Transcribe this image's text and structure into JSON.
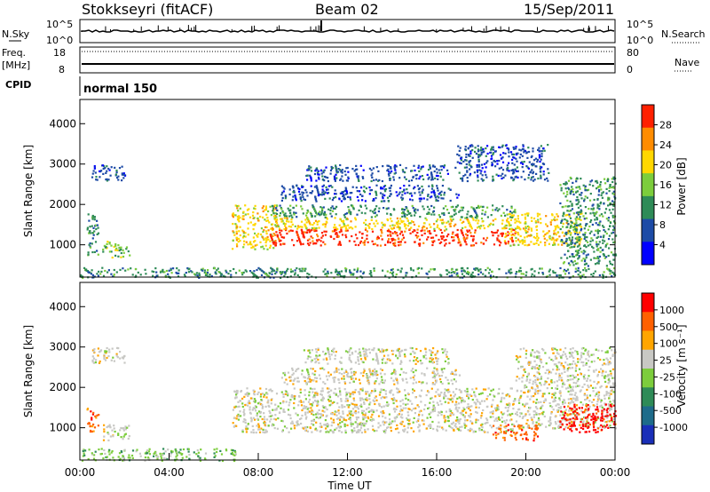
{
  "header": {
    "station": "Stokkseyri (fitACF)",
    "beam": "Beam 02",
    "date": "15/Sep/2011"
  },
  "summary_panels": {
    "nsky_label": "N.Sky",
    "nsky_ticks": [
      "10^5",
      "10^0"
    ],
    "nsearch_label": "N.Search",
    "nsearch_ticks": [
      "10^5",
      "10^0"
    ],
    "freq_label": "Freq.",
    "freq_unit": "[MHz]",
    "freq_ticks": [
      "18",
      "8"
    ],
    "nave_label": "Nave",
    "nave_ticks": [
      "80",
      "0"
    ],
    "cpid_label": "CPID",
    "cpid_value": "normal 150"
  },
  "chart_data": [
    {
      "type": "heatmap",
      "panel": "power",
      "ylabel": "Slant Range [km]",
      "xlabel": "",
      "ylim": [
        200,
        4600
      ],
      "yticks": [
        "1000",
        "2000",
        "3000",
        "4000"
      ],
      "colorbar_label": "Power [dB]",
      "colorbar_ticks": [
        "4",
        "8",
        "12",
        "16",
        "20",
        "24",
        "28"
      ],
      "colors": [
        "#0000ff",
        "#1d4ba6",
        "#2e8b57",
        "#7ccd3c",
        "#ffd700",
        "#ff8c00",
        "#ff2000"
      ],
      "bands": [
        {
          "t_start": 0.3,
          "t_end": 0.8,
          "range_lo": 700,
          "range_hi": 1800,
          "level": 2
        },
        {
          "t_start": 0.5,
          "t_end": 2.0,
          "range_lo": 2600,
          "range_hi": 3000,
          "level": 1
        },
        {
          "t_start": 1.0,
          "t_end": 2.2,
          "range_lo": 700,
          "range_hi": 1100,
          "level": 3
        },
        {
          "t_start": 6.8,
          "t_end": 8.8,
          "range_lo": 900,
          "range_hi": 2000,
          "level": 4
        },
        {
          "t_start": 8.5,
          "t_end": 19.5,
          "range_lo": 1000,
          "range_hi": 1400,
          "level": 6
        },
        {
          "t_start": 8.5,
          "t_end": 19.5,
          "range_lo": 1400,
          "range_hi": 1700,
          "level": 4
        },
        {
          "t_start": 8.5,
          "t_end": 19.5,
          "range_lo": 1700,
          "range_hi": 2000,
          "level": 2
        },
        {
          "t_start": 9.0,
          "t_end": 17.0,
          "range_lo": 2100,
          "range_hi": 2500,
          "level": 1
        },
        {
          "t_start": 10.0,
          "t_end": 16.5,
          "range_lo": 2600,
          "range_hi": 3000,
          "level": 1
        },
        {
          "t_start": 16.8,
          "t_end": 21.0,
          "range_lo": 2600,
          "range_hi": 3500,
          "level": 1
        },
        {
          "t_start": 19.0,
          "t_end": 22.5,
          "range_lo": 1000,
          "range_hi": 1800,
          "level": 4
        },
        {
          "t_start": 21.5,
          "t_end": 24.0,
          "range_lo": 500,
          "range_hi": 2700,
          "level": 2
        },
        {
          "t_start": 0.0,
          "t_end": 24.0,
          "range_lo": 200,
          "range_hi": 450,
          "level": 2
        }
      ]
    },
    {
      "type": "heatmap",
      "panel": "velocity",
      "ylabel": "Slant Range [km]",
      "xlabel": "Time UT",
      "xlim": [
        "00:00",
        "00:00"
      ],
      "xticks": [
        "00:00",
        "04:00",
        "08:00",
        "12:00",
        "16:00",
        "20:00",
        "00:00"
      ],
      "ylim": [
        200,
        4600
      ],
      "yticks": [
        "1000",
        "2000",
        "3000",
        "4000"
      ],
      "colorbar_label": "Velocity [m s⁻¹]",
      "colorbar_ticks": [
        "1000",
        "500",
        "100",
        "25",
        "-25",
        "-100",
        "-500",
        "-1000"
      ],
      "colors": [
        "#1a2fb8",
        "#1e6b8a",
        "#2e8b57",
        "#7ccd3c",
        "#c8c8c4",
        "#ffa500",
        "#ff6000",
        "#ff0000"
      ],
      "bands": [
        {
          "t_start": 0.3,
          "t_end": 0.8,
          "range_lo": 900,
          "range_hi": 1500,
          "level": 6
        },
        {
          "t_start": 0.5,
          "t_end": 2.0,
          "range_lo": 2600,
          "range_hi": 3000,
          "level": 4
        },
        {
          "t_start": 1.0,
          "t_end": 2.2,
          "range_lo": 700,
          "range_hi": 1100,
          "level": 4
        },
        {
          "t_start": 6.8,
          "t_end": 19.5,
          "range_lo": 900,
          "range_hi": 2000,
          "level": 4
        },
        {
          "t_start": 9.0,
          "t_end": 17.0,
          "range_lo": 2100,
          "range_hi": 2500,
          "level": 4
        },
        {
          "t_start": 10.0,
          "t_end": 16.5,
          "range_lo": 2600,
          "range_hi": 3000,
          "level": 4
        },
        {
          "t_start": 19.5,
          "t_end": 24.0,
          "range_lo": 1000,
          "range_hi": 3000,
          "level": 4
        },
        {
          "t_start": 18.5,
          "t_end": 20.5,
          "range_lo": 700,
          "range_hi": 1100,
          "level": 6
        },
        {
          "t_start": 21.5,
          "t_end": 24.0,
          "range_lo": 900,
          "range_hi": 1600,
          "level": 7
        },
        {
          "t_start": 0.0,
          "t_end": 7.0,
          "range_lo": 200,
          "range_hi": 500,
          "level": 3
        }
      ]
    }
  ]
}
